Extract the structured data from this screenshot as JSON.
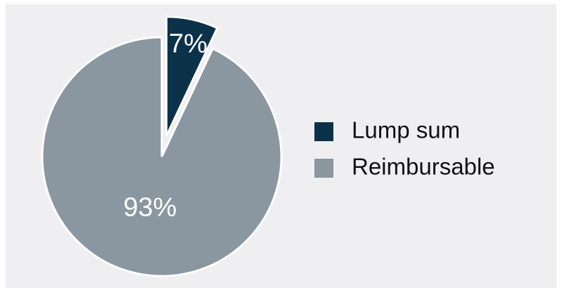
{
  "chart_data": {
    "type": "pie",
    "categories": [
      "Lump sum",
      "Reimbursable"
    ],
    "values": [
      7,
      93
    ],
    "value_labels": [
      "7%",
      "93%"
    ],
    "colors": [
      "#0c3249",
      "#8a96a0"
    ],
    "exploded": [
      true,
      false
    ],
    "legend": "right"
  }
}
